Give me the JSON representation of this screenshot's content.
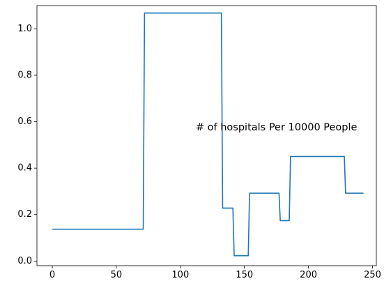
{
  "chart_data": {
    "type": "line",
    "title": "",
    "xlabel": "",
    "ylabel": "",
    "xlim": [
      -12,
      253
    ],
    "ylim": [
      -0.02,
      1.1
    ],
    "xticks": [
      0,
      50,
      100,
      150,
      200,
      250
    ],
    "yticks": [
      0.0,
      0.2,
      0.4,
      0.6,
      0.8,
      1.0
    ],
    "xtick_labels": [
      "0",
      "50",
      "100",
      "150",
      "200",
      "250"
    ],
    "ytick_labels": [
      "0.0",
      "0.2",
      "0.4",
      "0.6",
      "0.8",
      "1.0"
    ],
    "grid": false,
    "annotation": {
      "text": "# of hospitals Per 10000 People",
      "x": 112,
      "y": 0.575
    },
    "series": [
      {
        "color": "#1f77b4",
        "points": [
          [
            0,
            0.137
          ],
          [
            71,
            0.137
          ],
          [
            72,
            1.068
          ],
          [
            132,
            1.068
          ],
          [
            133,
            0.228
          ],
          [
            141,
            0.228
          ],
          [
            142,
            0.023
          ],
          [
            153,
            0.023
          ],
          [
            154,
            0.292
          ],
          [
            177,
            0.292
          ],
          [
            178,
            0.174
          ],
          [
            185,
            0.174
          ],
          [
            186,
            0.45
          ],
          [
            228,
            0.45
          ],
          [
            229,
            0.292
          ],
          [
            243,
            0.292
          ]
        ]
      }
    ]
  }
}
